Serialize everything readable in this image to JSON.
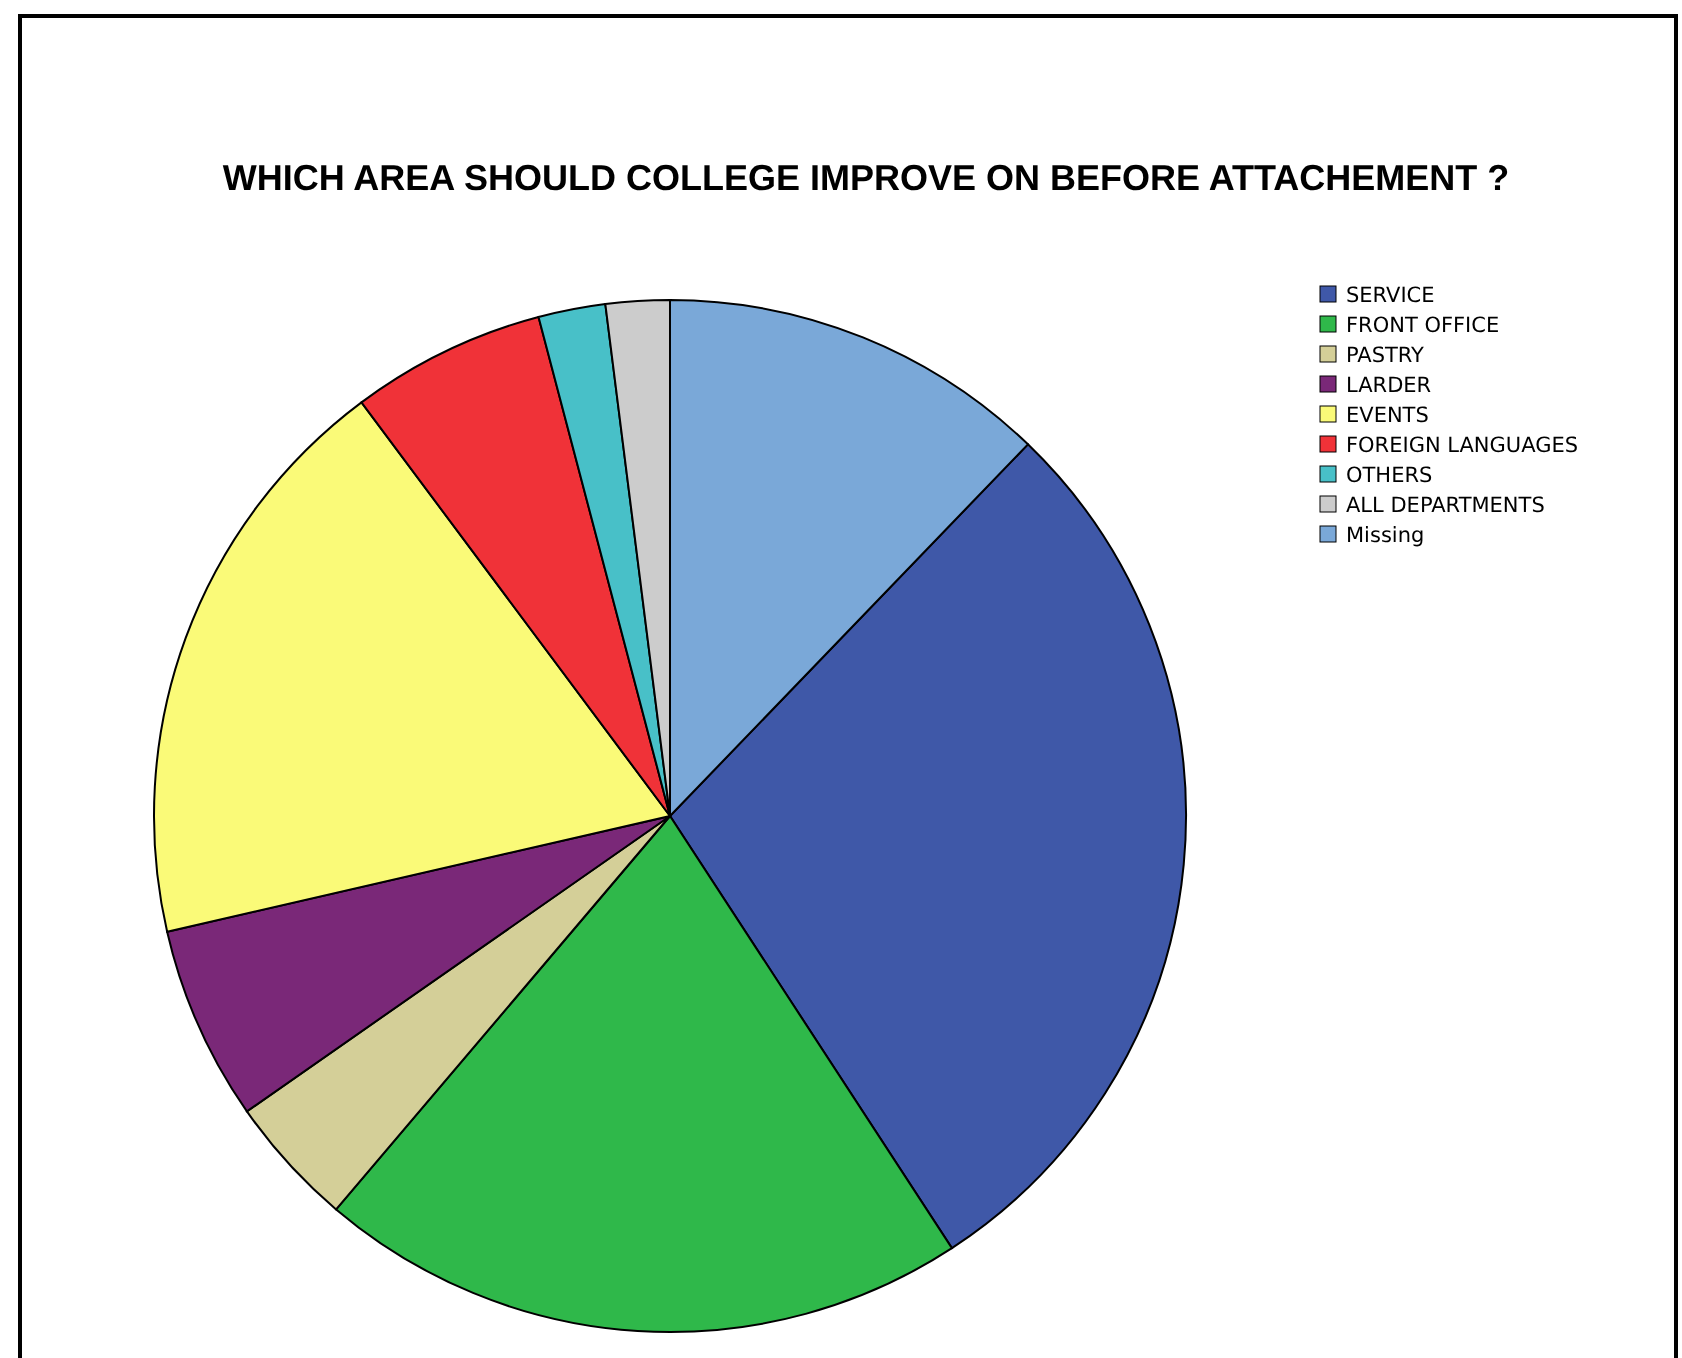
{
  "chart_data": {
    "type": "pie",
    "title": "WHICH AREA SHOULD COLLEGE IMPROVE ON BEFORE ATTACHEMENT ?",
    "categories": [
      "SERVICE",
      "FRONT OFFICE",
      "PASTRY",
      "LARDER",
      "EVENTS",
      "FOREIGN LANGUAGES",
      "OTHERS",
      "ALL DEPARTMENTS",
      "Missing"
    ],
    "values": [
      28.6,
      20.4,
      4.1,
      6.1,
      18.4,
      6.1,
      2.1,
      2.0,
      12.2
    ],
    "colors": [
      "#3f58a8",
      "#2fb84a",
      "#d4cf98",
      "#7a2878",
      "#fafa78",
      "#f03238",
      "#48c0c8",
      "#cccccc",
      "#7aa8d8"
    ],
    "legend": "top right"
  }
}
